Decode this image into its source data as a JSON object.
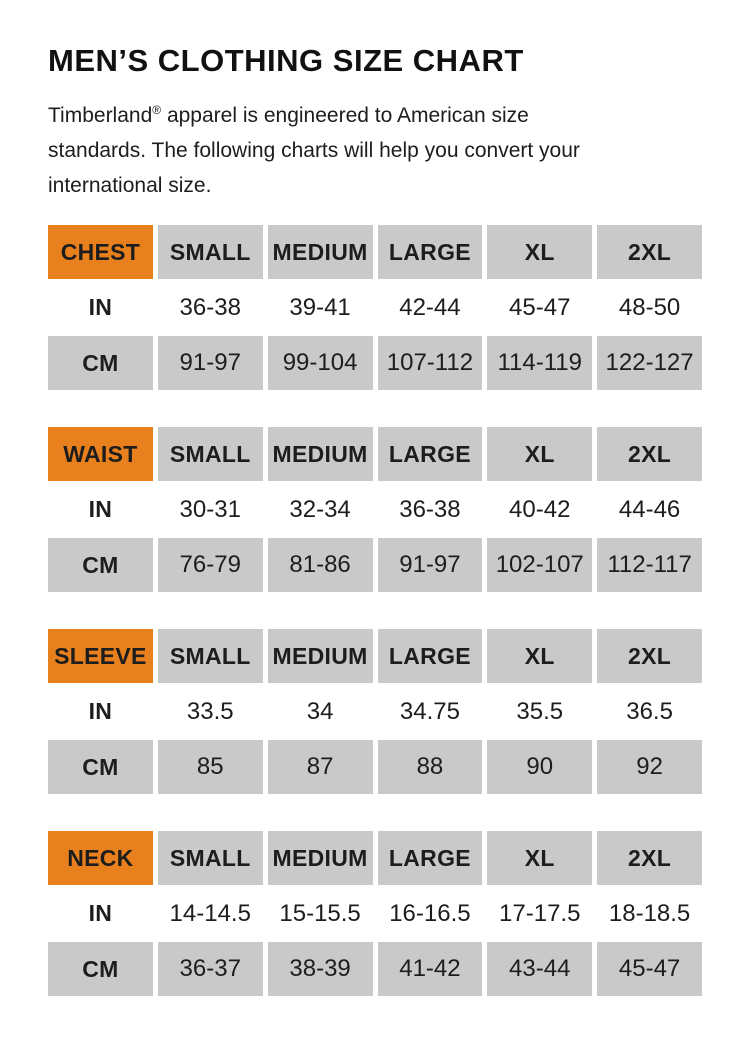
{
  "page": {
    "title": "MEN’S CLOTHING SIZE CHART",
    "description_brand": "Timberland",
    "description_reg": "®",
    "description_rest": " apparel is engineered to American size standards. The following charts will help you convert your international size."
  },
  "colors": {
    "accent_orange": "#E8801E",
    "cell_gray": "#C9C9C9",
    "text_black": "#1D1D1D"
  },
  "size_columns": [
    "SMALL",
    "MEDIUM",
    "LARGE",
    "XL",
    "2XL"
  ],
  "tables": [
    {
      "label": "CHEST",
      "rows": [
        {
          "unit": "IN",
          "values": [
            "36-38",
            "39-41",
            "42-44",
            "45-47",
            "48-50"
          ]
        },
        {
          "unit": "CM",
          "values": [
            "91-97",
            "99-104",
            "107-112",
            "114-119",
            "122-127"
          ]
        }
      ]
    },
    {
      "label": "WAIST",
      "rows": [
        {
          "unit": "IN",
          "values": [
            "30-31",
            "32-34",
            "36-38",
            "40-42",
            "44-46"
          ]
        },
        {
          "unit": "CM",
          "values": [
            "76-79",
            "81-86",
            "91-97",
            "102-107",
            "112-117"
          ]
        }
      ]
    },
    {
      "label": "SLEEVE",
      "rows": [
        {
          "unit": "IN",
          "values": [
            "33.5",
            "34",
            "34.75",
            "35.5",
            "36.5"
          ]
        },
        {
          "unit": "CM",
          "values": [
            "85",
            "87",
            "88",
            "90",
            "92"
          ]
        }
      ]
    },
    {
      "label": "NECK",
      "rows": [
        {
          "unit": "IN",
          "values": [
            "14-14.5",
            "15-15.5",
            "16-16.5",
            "17-17.5",
            "18-18.5"
          ]
        },
        {
          "unit": "CM",
          "values": [
            "36-37",
            "38-39",
            "41-42",
            "43-44",
            "45-47"
          ]
        }
      ]
    }
  ]
}
